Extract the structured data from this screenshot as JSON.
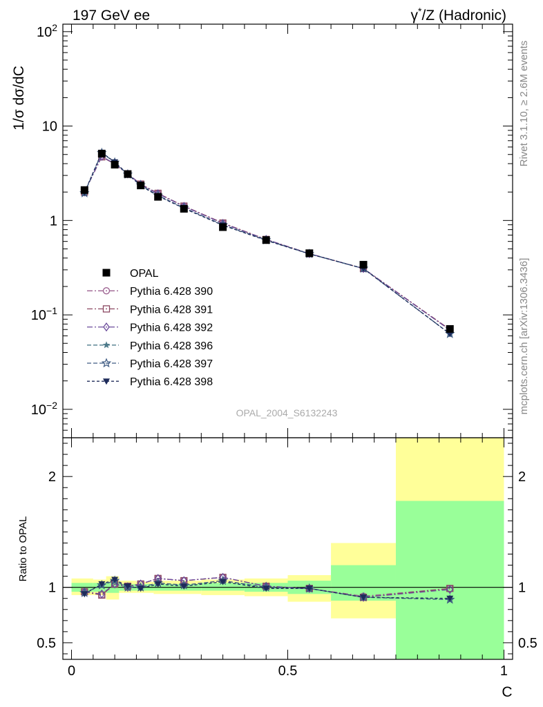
{
  "header": {
    "left_title": "197 GeV ee",
    "right_title_sup": "*",
    "right_title_pre": "γ",
    "right_title_post": "/Z (Hadronic)"
  },
  "side_text": {
    "rivet": "Rivet 3.1.10, ≥ 2.6M events",
    "mcplots": "mcplots.cern.ch [arXiv:1306.3436]"
  },
  "analysis_id": "OPAL_2004_S6132243",
  "chart_data": [
    {
      "type": "line",
      "panel": "main",
      "title": "",
      "ylabel": "1/σ dσ/dC",
      "xlabel": "",
      "yscale": "log",
      "ylim": [
        0.005,
        120
      ],
      "xlim": [
        -0.02,
        1.02
      ],
      "y_tick_labels": [
        "10⁻²",
        "10⁻¹",
        "1",
        "10",
        "10²"
      ],
      "legend_placement": "left, mid",
      "x": [
        0.03,
        0.07,
        0.1,
        0.13,
        0.16,
        0.2,
        0.26,
        0.35,
        0.45,
        0.55,
        0.675,
        0.875
      ],
      "series": [
        {
          "name": "OPAL",
          "marker": "square",
          "color": "#000000",
          "values": [
            2.1,
            5.1,
            3.9,
            3.1,
            2.35,
            1.78,
            1.33,
            0.85,
            0.62,
            0.45,
            0.34,
            0.071
          ]
        },
        {
          "name": "Pythia 6.428 390",
          "marker": "circle",
          "color": "#9b5f8f",
          "dash": "8,3,2,3",
          "values": [
            2.0,
            4.75,
            3.95,
            3.12,
            2.42,
            1.93,
            1.42,
            0.94,
            0.63,
            0.445,
            0.31,
            0.07
          ]
        },
        {
          "name": "Pythia 6.428 391",
          "marker": "open-square",
          "color": "#8a4660",
          "dash": "8,3,2,3",
          "values": [
            2.0,
            4.72,
            3.95,
            3.12,
            2.43,
            1.94,
            1.42,
            0.94,
            0.63,
            0.445,
            0.31,
            0.07
          ]
        },
        {
          "name": "Pythia 6.428 392",
          "marker": "diamond",
          "color": "#6a4a9a",
          "dash": "8,3,2,3",
          "values": [
            2.0,
            4.78,
            3.98,
            3.11,
            2.41,
            1.92,
            1.41,
            0.93,
            0.63,
            0.445,
            0.31,
            0.069
          ]
        },
        {
          "name": "Pythia 6.428 396",
          "marker": "star",
          "color": "#4d7a8a",
          "dash": "6,3",
          "values": [
            1.95,
            5.2,
            4.15,
            3.08,
            2.37,
            1.84,
            1.36,
            0.9,
            0.62,
            0.443,
            0.31,
            0.063
          ]
        },
        {
          "name": "Pythia 6.428 397",
          "marker": "open-star",
          "color": "#3e5a82",
          "dash": "6,3",
          "values": [
            1.95,
            5.2,
            4.12,
            3.08,
            2.37,
            1.84,
            1.36,
            0.9,
            0.62,
            0.443,
            0.31,
            0.063
          ]
        },
        {
          "name": "Pythia 6.428 398",
          "marker": "triangle-down",
          "color": "#1e2b5a",
          "dash": "4,3",
          "values": [
            1.98,
            5.25,
            4.15,
            3.1,
            2.33,
            1.82,
            1.34,
            0.89,
            0.615,
            0.443,
            0.31,
            0.063
          ]
        }
      ]
    },
    {
      "type": "line",
      "panel": "ratio",
      "title": "",
      "ylabel": "Ratio to OPAL",
      "xlabel": "C",
      "ylim": [
        0.35,
        2.35
      ],
      "xlim": [
        -0.02,
        1.02
      ],
      "x_tick_labels": [
        "0",
        "0.5",
        "1"
      ],
      "y_tick_labels": [
        "0.5",
        "1",
        "2"
      ],
      "uncertainty_bins": [
        {
          "xlo": 0.0,
          "xhi": 0.05,
          "yellow": [
            0.93,
            1.08
          ],
          "green": [
            0.96,
            1.04
          ]
        },
        {
          "xlo": 0.05,
          "xhi": 0.08,
          "yellow": [
            0.93,
            1.07
          ],
          "green": [
            0.96,
            1.04
          ]
        },
        {
          "xlo": 0.08,
          "xhi": 0.11,
          "yellow": [
            0.89,
            1.1
          ],
          "green": [
            0.95,
            1.05
          ]
        },
        {
          "xlo": 0.11,
          "xhi": 0.15,
          "yellow": [
            0.95,
            1.06
          ],
          "green": [
            0.97,
            1.03
          ]
        },
        {
          "xlo": 0.15,
          "xhi": 0.19,
          "yellow": [
            0.95,
            1.05
          ],
          "green": [
            0.97,
            1.03
          ]
        },
        {
          "xlo": 0.19,
          "xhi": 0.3,
          "yellow": [
            0.94,
            1.06
          ],
          "green": [
            0.97,
            1.03
          ]
        },
        {
          "xlo": 0.3,
          "xhi": 0.4,
          "yellow": [
            0.93,
            1.07
          ],
          "green": [
            0.97,
            1.04
          ]
        },
        {
          "xlo": 0.4,
          "xhi": 0.5,
          "yellow": [
            0.92,
            1.08
          ],
          "green": [
            0.96,
            1.04
          ]
        },
        {
          "xlo": 0.5,
          "xhi": 0.6,
          "yellow": [
            0.87,
            1.11
          ],
          "green": [
            0.94,
            1.06
          ]
        },
        {
          "xlo": 0.6,
          "xhi": 0.75,
          "yellow": [
            0.72,
            1.4
          ],
          "green": [
            0.88,
            1.2
          ]
        },
        {
          "xlo": 0.75,
          "xhi": 1.0,
          "yellow": [
            0.0,
            2.5
          ],
          "green": [
            0.0,
            1.78
          ]
        }
      ],
      "x": [
        0.03,
        0.07,
        0.1,
        0.13,
        0.16,
        0.2,
        0.26,
        0.35,
        0.45,
        0.55,
        0.675,
        0.875
      ],
      "series": [
        {
          "name": "Pythia 6.428 390",
          "marker": "circle",
          "color": "#9b5f8f",
          "dash": "8,3,2,3",
          "values": [
            0.96,
            0.93,
            1.03,
            1.01,
            1.03,
            1.08,
            1.06,
            1.09,
            1.01,
            0.99,
            0.92,
            0.99
          ]
        },
        {
          "name": "Pythia 6.428 391",
          "marker": "open-square",
          "color": "#8a4660",
          "dash": "8,3,2,3",
          "values": [
            0.96,
            0.93,
            1.03,
            1.01,
            1.03,
            1.08,
            1.06,
            1.09,
            1.01,
            0.99,
            0.91,
            0.99
          ]
        },
        {
          "name": "Pythia 6.428 392",
          "marker": "diamond",
          "color": "#6a4a9a",
          "dash": "8,3,2,3",
          "values": [
            0.96,
            0.94,
            1.03,
            1.0,
            1.03,
            1.08,
            1.06,
            1.09,
            1.01,
            0.99,
            0.91,
            0.98
          ]
        },
        {
          "name": "Pythia 6.428 396",
          "marker": "star",
          "color": "#4d7a8a",
          "dash": "6,3",
          "values": [
            0.95,
            1.02,
            1.06,
            1.0,
            1.0,
            1.04,
            1.02,
            1.06,
            1.0,
            0.99,
            0.91,
            0.89
          ]
        },
        {
          "name": "Pythia 6.428 397",
          "marker": "open-star",
          "color": "#3e5a82",
          "dash": "6,3",
          "values": [
            0.95,
            1.02,
            1.06,
            1.0,
            1.0,
            1.04,
            1.02,
            1.06,
            1.0,
            0.99,
            0.91,
            0.89
          ]
        },
        {
          "name": "Pythia 6.428 398",
          "marker": "triangle-down",
          "color": "#1e2b5a",
          "dash": "4,3",
          "values": [
            0.94,
            1.03,
            1.07,
            1.01,
            0.99,
            1.03,
            1.01,
            1.05,
            0.99,
            0.99,
            0.91,
            0.9
          ]
        }
      ]
    }
  ]
}
